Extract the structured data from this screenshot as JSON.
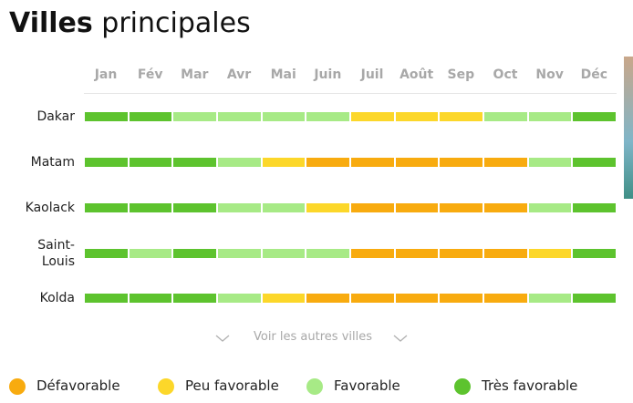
{
  "header": {
    "title_bold": "Villes",
    "title_rest": "principales"
  },
  "months": [
    "Jan",
    "Fév",
    "Mar",
    "Avr",
    "Mai",
    "Juin",
    "Juil",
    "Août",
    "Sep",
    "Oct",
    "Nov",
    "Déc"
  ],
  "legend": [
    {
      "label": "Défavorable",
      "color": "#f8ab0f"
    },
    {
      "label": "Peu favorable",
      "color": "#fcd72a"
    },
    {
      "label": "Favorable",
      "color": "#a7ea86"
    },
    {
      "label": "Très favorable",
      "color": "#5dc32e"
    }
  ],
  "cities": [
    {
      "name": "Dakar",
      "levels": [
        3,
        3,
        2,
        2,
        2,
        2,
        1,
        1,
        1,
        2,
        2,
        3
      ]
    },
    {
      "name": "Matam",
      "levels": [
        3,
        3,
        3,
        2,
        1,
        0,
        0,
        0,
        0,
        0,
        2,
        3
      ]
    },
    {
      "name": "Kaolack",
      "levels": [
        3,
        3,
        3,
        2,
        2,
        1,
        0,
        0,
        0,
        0,
        2,
        3
      ]
    },
    {
      "name": "Saint-Louis",
      "levels": [
        3,
        2,
        3,
        2,
        2,
        2,
        0,
        0,
        0,
        0,
        1,
        3
      ]
    },
    {
      "name": "Kolda",
      "levels": [
        3,
        3,
        3,
        2,
        1,
        0,
        0,
        0,
        0,
        0,
        2,
        3
      ]
    }
  ],
  "more_link": "Voir les autres villes"
}
